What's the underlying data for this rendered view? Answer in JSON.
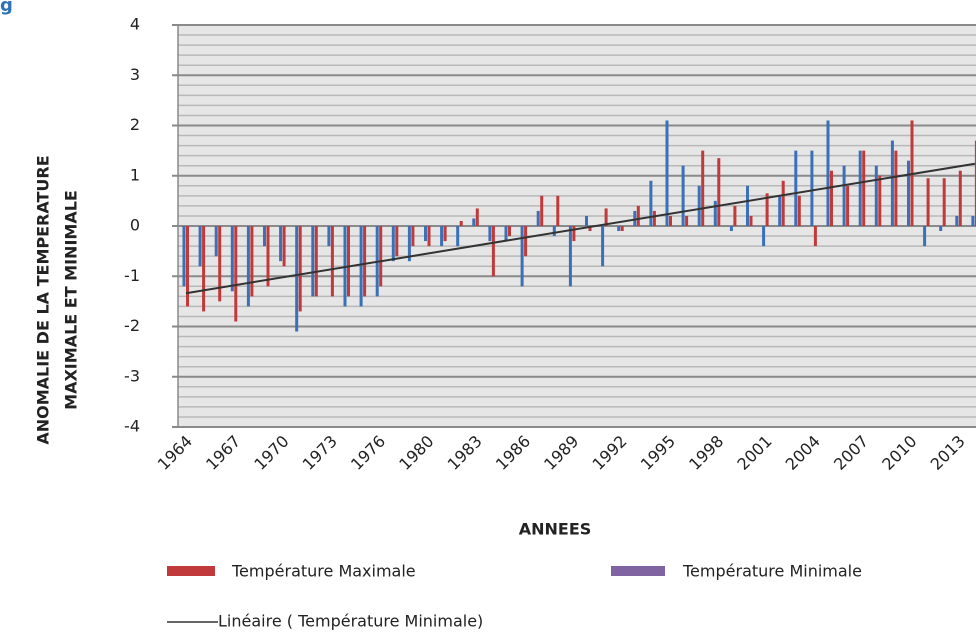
{
  "corner_text": "g",
  "chart_data": {
    "type": "bar",
    "x_label": "ANNEES",
    "y_label": [
      "ANOMALIE DE LA TEMPERATURE",
      "MAXIMALE ET MINIMALE"
    ],
    "categories": [
      "1964",
      null,
      null,
      "1967",
      null,
      null,
      "1970",
      null,
      null,
      "1973",
      null,
      null,
      "1976",
      null,
      null,
      "1980",
      null,
      null,
      "1983",
      null,
      null,
      "1986",
      null,
      null,
      "1989",
      null,
      null,
      "1992",
      null,
      null,
      "1995",
      null,
      null,
      "1998",
      null,
      null,
      "2001",
      null,
      null,
      "2004",
      null,
      null,
      "2007",
      null,
      null,
      "2010",
      null,
      null,
      "2013",
      null
    ],
    "series": [
      {
        "name": "Température Maximale",
        "color": "#c0393b",
        "values": [
          -1.6,
          -1.7,
          -1.5,
          -1.9,
          -1.4,
          -1.2,
          -0.8,
          -1.7,
          -1.4,
          -1.4,
          -1.4,
          -1.4,
          -1.2,
          -0.6,
          -0.4,
          -0.4,
          -0.3,
          0.1,
          0.35,
          -1.0,
          -0.2,
          -0.6,
          0.6,
          0.6,
          -0.3,
          -0.1,
          0.35,
          -0.1,
          0.4,
          0.3,
          0.2,
          0.2,
          1.5,
          1.35,
          0.4,
          0.2,
          0.65,
          0.9,
          0.6,
          -0.4,
          1.1,
          0.8,
          1.5,
          1.0,
          1.5,
          2.1,
          0.95,
          0.95,
          1.1,
          1.7
        ]
      },
      {
        "name": "Température Minimale",
        "color": "#3b6fb6",
        "legend_color": "#8064a2",
        "values": [
          -1.2,
          -0.8,
          -0.6,
          -1.3,
          -1.6,
          -0.4,
          -0.7,
          -2.1,
          -1.4,
          -0.4,
          -1.6,
          -1.6,
          -1.4,
          -0.7,
          -0.7,
          -0.3,
          -0.4,
          -0.4,
          0.15,
          -0.3,
          -0.3,
          -1.2,
          0.3,
          -0.2,
          -1.2,
          0.2,
          -0.8,
          -0.1,
          0.3,
          0.9,
          2.1,
          1.2,
          0.8,
          0.5,
          -0.1,
          0.8,
          -0.4,
          0.6,
          1.5,
          1.5,
          2.1,
          1.2,
          1.5,
          1.2,
          1.7,
          1.3,
          -0.4,
          -0.1,
          0.2,
          0.2
        ]
      }
    ],
    "trendline": {
      "name": "Linéaire ( Température Minimale)",
      "color": "#333333"
    },
    "ylim": [
      -4,
      4
    ],
    "yticks": [
      -4,
      -3,
      -2,
      -1,
      0,
      1,
      2,
      3,
      4
    ],
    "grid": true
  }
}
